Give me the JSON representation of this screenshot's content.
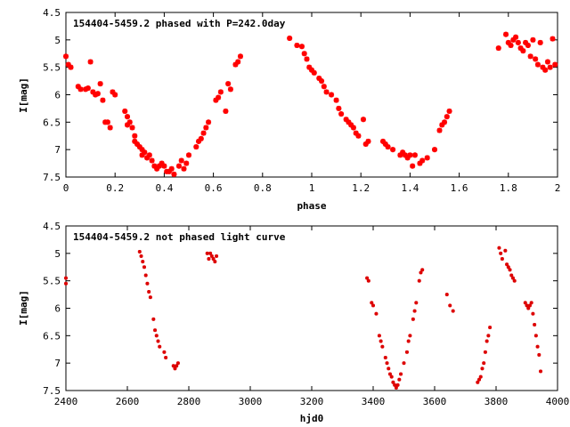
{
  "chart_data": [
    {
      "type": "scatter",
      "title": "154404-5459.2 phased with P=242.0day",
      "xlabel": "phase",
      "ylabel": "I[mag]",
      "xlim": [
        0,
        2
      ],
      "ylim": [
        7.5,
        4.5
      ],
      "x_ticks": [
        0,
        0.2,
        0.4,
        0.6,
        0.8,
        1,
        1.2,
        1.4,
        1.6,
        1.8,
        2
      ],
      "x_tick_labels": [
        "0",
        "0.2",
        "0.4",
        "0.6",
        "0.8",
        "1",
        "1.2",
        "1.4",
        "1.6",
        "1.8",
        "2"
      ],
      "y_ticks": [
        4.5,
        5,
        5.5,
        6,
        6.5,
        7,
        7.5
      ],
      "y_tick_labels": [
        "4.5",
        "5",
        "5.5",
        "6",
        "6.5",
        "7",
        "7.5"
      ],
      "marker": "plus",
      "color": "#ff0000",
      "grid": false,
      "points": [
        [
          0.0,
          5.3
        ],
        [
          0.01,
          5.45
        ],
        [
          0.02,
          5.5
        ],
        [
          0.05,
          5.85
        ],
        [
          0.06,
          5.9
        ],
        [
          0.08,
          5.9
        ],
        [
          0.09,
          5.88
        ],
        [
          0.1,
          5.4
        ],
        [
          0.11,
          5.95
        ],
        [
          0.12,
          6.0
        ],
        [
          0.13,
          5.98
        ],
        [
          0.14,
          5.8
        ],
        [
          0.15,
          6.1
        ],
        [
          0.16,
          6.5
        ],
        [
          0.17,
          6.5
        ],
        [
          0.18,
          6.6
        ],
        [
          0.19,
          5.95
        ],
        [
          0.2,
          6.0
        ],
        [
          0.24,
          6.3
        ],
        [
          0.25,
          6.4
        ],
        [
          0.25,
          6.55
        ],
        [
          0.26,
          6.5
        ],
        [
          0.27,
          6.6
        ],
        [
          0.28,
          6.75
        ],
        [
          0.28,
          6.85
        ],
        [
          0.29,
          6.9
        ],
        [
          0.3,
          6.95
        ],
        [
          0.31,
          7.0
        ],
        [
          0.31,
          7.1
        ],
        [
          0.32,
          7.05
        ],
        [
          0.33,
          7.15
        ],
        [
          0.34,
          7.1
        ],
        [
          0.35,
          7.2
        ],
        [
          0.36,
          7.3
        ],
        [
          0.37,
          7.35
        ],
        [
          0.38,
          7.3
        ],
        [
          0.39,
          7.25
        ],
        [
          0.4,
          7.3
        ],
        [
          0.41,
          7.4
        ],
        [
          0.42,
          7.4
        ],
        [
          0.43,
          7.35
        ],
        [
          0.44,
          7.45
        ],
        [
          0.46,
          7.3
        ],
        [
          0.47,
          7.2
        ],
        [
          0.48,
          7.35
        ],
        [
          0.49,
          7.25
        ],
        [
          0.5,
          7.1
        ],
        [
          0.53,
          6.95
        ],
        [
          0.54,
          6.85
        ],
        [
          0.55,
          6.8
        ],
        [
          0.56,
          6.7
        ],
        [
          0.57,
          6.6
        ],
        [
          0.58,
          6.5
        ],
        [
          0.61,
          6.1
        ],
        [
          0.62,
          6.05
        ],
        [
          0.63,
          5.95
        ],
        [
          0.65,
          6.3
        ],
        [
          0.66,
          5.8
        ],
        [
          0.67,
          5.9
        ],
        [
          0.69,
          5.45
        ],
        [
          0.7,
          5.4
        ],
        [
          0.71,
          5.3
        ],
        [
          0.91,
          4.97
        ],
        [
          0.94,
          5.1
        ],
        [
          0.96,
          5.12
        ],
        [
          0.97,
          5.25
        ],
        [
          0.98,
          5.35
        ],
        [
          0.99,
          5.5
        ],
        [
          1.0,
          5.55
        ],
        [
          1.01,
          5.6
        ],
        [
          1.03,
          5.7
        ],
        [
          1.04,
          5.75
        ],
        [
          1.05,
          5.85
        ],
        [
          1.06,
          5.95
        ],
        [
          1.08,
          6.0
        ],
        [
          1.1,
          6.1
        ],
        [
          1.11,
          6.25
        ],
        [
          1.12,
          6.35
        ],
        [
          1.14,
          6.45
        ],
        [
          1.15,
          6.5
        ],
        [
          1.16,
          6.55
        ],
        [
          1.17,
          6.6
        ],
        [
          1.18,
          6.7
        ],
        [
          1.19,
          6.75
        ],
        [
          1.21,
          6.45
        ],
        [
          1.22,
          6.9
        ],
        [
          1.23,
          6.85
        ],
        [
          1.29,
          6.85
        ],
        [
          1.3,
          6.9
        ],
        [
          1.31,
          6.95
        ],
        [
          1.33,
          7.0
        ],
        [
          1.36,
          7.1
        ],
        [
          1.37,
          7.05
        ],
        [
          1.38,
          7.1
        ],
        [
          1.39,
          7.15
        ],
        [
          1.4,
          7.1
        ],
        [
          1.41,
          7.3
        ],
        [
          1.42,
          7.1
        ],
        [
          1.44,
          7.25
        ],
        [
          1.45,
          7.2
        ],
        [
          1.47,
          7.15
        ],
        [
          1.5,
          7.0
        ],
        [
          1.52,
          6.65
        ],
        [
          1.53,
          6.55
        ],
        [
          1.54,
          6.5
        ],
        [
          1.55,
          6.4
        ],
        [
          1.56,
          6.3
        ],
        [
          1.76,
          5.15
        ],
        [
          1.79,
          4.9
        ],
        [
          1.8,
          5.05
        ],
        [
          1.81,
          5.1
        ],
        [
          1.82,
          5.0
        ],
        [
          1.83,
          4.95
        ],
        [
          1.84,
          5.05
        ],
        [
          1.85,
          5.15
        ],
        [
          1.86,
          5.2
        ],
        [
          1.87,
          5.05
        ],
        [
          1.88,
          5.1
        ],
        [
          1.89,
          5.3
        ],
        [
          1.9,
          5.0
        ],
        [
          1.91,
          5.35
        ],
        [
          1.92,
          5.45
        ],
        [
          1.93,
          5.05
        ],
        [
          1.94,
          5.5
        ],
        [
          1.95,
          5.55
        ],
        [
          1.96,
          5.4
        ],
        [
          1.97,
          5.5
        ],
        [
          1.98,
          4.98
        ],
        [
          1.99,
          5.45
        ]
      ]
    },
    {
      "type": "scatter",
      "title": "154404-5459.2 not phased light curve",
      "xlabel": "hjd0",
      "ylabel": "I[mag]",
      "xlim": [
        2400,
        4000
      ],
      "ylim": [
        7.5,
        4.5
      ],
      "x_ticks": [
        2400,
        2600,
        2800,
        3000,
        3200,
        3400,
        3600,
        3800,
        4000
      ],
      "x_tick_labels": [
        "2400",
        "2600",
        "2800",
        "3000",
        "3200",
        "3400",
        "3600",
        "3800",
        "4000"
      ],
      "y_ticks": [
        4.5,
        5,
        5.5,
        6,
        6.5,
        7,
        7.5
      ],
      "y_tick_labels": [
        "4.5",
        "5",
        "5.5",
        "6",
        "6.5",
        "7",
        "7.5"
      ],
      "marker": "plus",
      "color": "#dd0000",
      "grid": false,
      "points": [
        [
          2400,
          5.45
        ],
        [
          2400,
          5.55
        ],
        [
          2640,
          4.97
        ],
        [
          2645,
          5.05
        ],
        [
          2650,
          5.15
        ],
        [
          2655,
          5.25
        ],
        [
          2660,
          5.4
        ],
        [
          2665,
          5.55
        ],
        [
          2670,
          5.7
        ],
        [
          2675,
          5.8
        ],
        [
          2685,
          6.2
        ],
        [
          2690,
          6.4
        ],
        [
          2695,
          6.5
        ],
        [
          2700,
          6.6
        ],
        [
          2705,
          6.7
        ],
        [
          2720,
          6.8
        ],
        [
          2725,
          6.9
        ],
        [
          2750,
          7.05
        ],
        [
          2755,
          7.1
        ],
        [
          2760,
          7.05
        ],
        [
          2765,
          7.0
        ],
        [
          2860,
          5.0
        ],
        [
          2865,
          5.1
        ],
        [
          2870,
          5.0
        ],
        [
          2875,
          5.05
        ],
        [
          2880,
          5.1
        ],
        [
          2885,
          5.15
        ],
        [
          2890,
          5.05
        ],
        [
          3380,
          5.45
        ],
        [
          3385,
          5.5
        ],
        [
          3395,
          5.9
        ],
        [
          3400,
          5.95
        ],
        [
          3410,
          6.1
        ],
        [
          3420,
          6.5
        ],
        [
          3425,
          6.6
        ],
        [
          3430,
          6.7
        ],
        [
          3440,
          6.9
        ],
        [
          3445,
          7.0
        ],
        [
          3450,
          7.1
        ],
        [
          3455,
          7.2
        ],
        [
          3460,
          7.25
        ],
        [
          3465,
          7.35
        ],
        [
          3470,
          7.4
        ],
        [
          3475,
          7.45
        ],
        [
          3480,
          7.4
        ],
        [
          3485,
          7.3
        ],
        [
          3490,
          7.2
        ],
        [
          3500,
          7.0
        ],
        [
          3510,
          6.8
        ],
        [
          3515,
          6.6
        ],
        [
          3520,
          6.5
        ],
        [
          3530,
          6.2
        ],
        [
          3535,
          6.05
        ],
        [
          3540,
          5.9
        ],
        [
          3550,
          5.5
        ],
        [
          3555,
          5.35
        ],
        [
          3560,
          5.3
        ],
        [
          3640,
          5.75
        ],
        [
          3650,
          5.95
        ],
        [
          3660,
          6.05
        ],
        [
          3740,
          7.35
        ],
        [
          3745,
          7.3
        ],
        [
          3750,
          7.25
        ],
        [
          3755,
          7.1
        ],
        [
          3760,
          7.0
        ],
        [
          3765,
          6.8
        ],
        [
          3770,
          6.6
        ],
        [
          3775,
          6.5
        ],
        [
          3780,
          6.35
        ],
        [
          3810,
          4.9
        ],
        [
          3815,
          5.0
        ],
        [
          3820,
          5.1
        ],
        [
          3830,
          4.95
        ],
        [
          3835,
          5.2
        ],
        [
          3840,
          5.25
        ],
        [
          3845,
          5.3
        ],
        [
          3850,
          5.4
        ],
        [
          3855,
          5.45
        ],
        [
          3860,
          5.5
        ],
        [
          3895,
          5.9
        ],
        [
          3900,
          5.95
        ],
        [
          3905,
          6.0
        ],
        [
          3910,
          5.95
        ],
        [
          3915,
          5.9
        ],
        [
          3920,
          6.1
        ],
        [
          3925,
          6.3
        ],
        [
          3930,
          6.5
        ],
        [
          3935,
          6.7
        ],
        [
          3940,
          6.85
        ],
        [
          3945,
          7.15
        ]
      ]
    }
  ]
}
